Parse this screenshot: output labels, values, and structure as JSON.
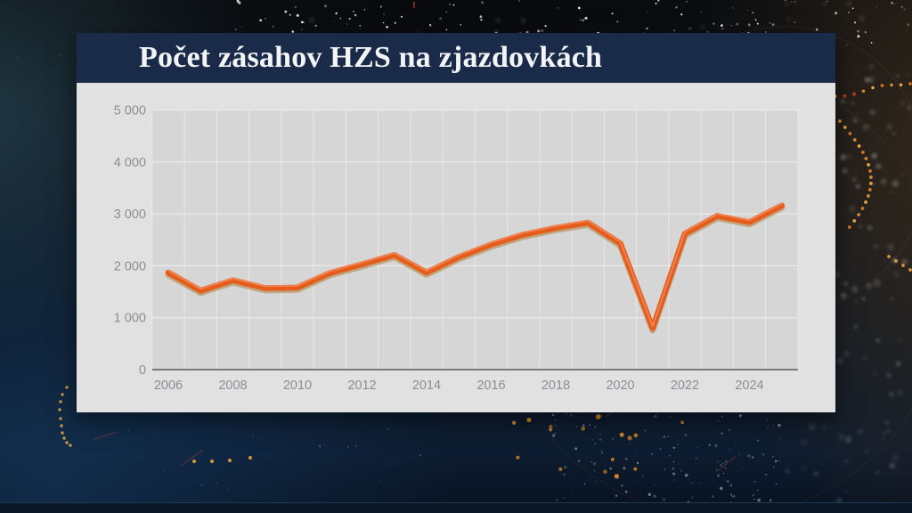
{
  "panel": {
    "title": "Počet zásahov HZS na zjazdovkách"
  },
  "colors": {
    "title_bar": "#1a2b4a",
    "title_text": "#f2f4f6",
    "panel_body": "#e1e1e1",
    "plot_background": "#d6d6d6",
    "line": "#e55c1b",
    "line_shadow": "#a8772c",
    "axis_line": "#58595b",
    "tick_text": "#8b8e92",
    "backdrop_amber_dot": "#e8a33c",
    "backdrop_red": "#b33a22"
  },
  "chart_data": {
    "type": "line",
    "title": "Počet zásahov HZS na zjazdovkách",
    "x": [
      2006,
      2007,
      2008,
      2009,
      2010,
      2011,
      2012,
      2013,
      2014,
      2015,
      2016,
      2017,
      2018,
      2019,
      2020,
      2021,
      2022,
      2023,
      2024,
      2025
    ],
    "series": [
      {
        "name": "Počet zásahov HZS",
        "values": [
          1870,
          1520,
          1720,
          1570,
          1580,
          1860,
          2030,
          2210,
          1870,
          2170,
          2410,
          2600,
          2730,
          2830,
          2430,
          800,
          2620,
          2960,
          2840,
          3160
        ]
      }
    ],
    "xlabel": "",
    "ylabel": "",
    "ylim": [
      0,
      5000
    ],
    "yticks": [
      0,
      1000,
      2000,
      3000,
      4000,
      5000
    ],
    "ytick_labels": [
      "0",
      "1 000",
      "2 000",
      "3 000",
      "4 000",
      "5 000"
    ],
    "xticks": [
      2006,
      2008,
      2010,
      2012,
      2014,
      2016,
      2018,
      2020,
      2022,
      2024
    ],
    "xtick_labels": [
      "2006",
      "2008",
      "2010",
      "2012",
      "2014",
      "2016",
      "2018",
      "2020",
      "2022",
      "2024"
    ],
    "grid": true,
    "legend": "none"
  }
}
